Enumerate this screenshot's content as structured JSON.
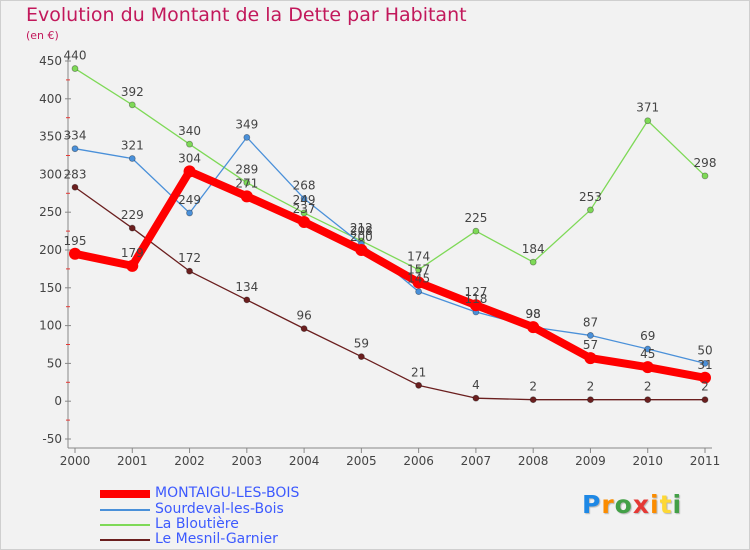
{
  "header": {
    "title": "Evolution du Montant de la Dette par Habitant",
    "unit": "(en €)"
  },
  "logo": {
    "letters": [
      "P",
      "r",
      "o",
      "x",
      "i",
      "t",
      "i"
    ],
    "colors": [
      "#1e88e5",
      "#fb8c00",
      "#43a047",
      "#e53935",
      "#fb8c00",
      "#fdd835",
      "#43a047"
    ]
  },
  "chart_data": {
    "type": "line",
    "title": "Evolution du Montant de la Dette par Habitant",
    "ylabel": "(en €)",
    "xlabel": "",
    "categories": [
      "2000",
      "2001",
      "2002",
      "2003",
      "2004",
      "2005",
      "2006",
      "2007",
      "2008",
      "2009",
      "2010",
      "2011"
    ],
    "ylim": [
      -50,
      450
    ],
    "yticks": [
      -50,
      0,
      50,
      100,
      150,
      200,
      250,
      300,
      350,
      400,
      450
    ],
    "grid": false,
    "legend_position": "bottom-left",
    "series": [
      {
        "name": "MONTAIGU-LES-BOIS",
        "color": "#ff0000",
        "values": [
          195,
          179,
          304,
          271,
          237,
          200,
          157,
          127,
          98,
          57,
          45,
          31
        ]
      },
      {
        "name": "Sourdeval-les-Bois",
        "color": "#4a90d9",
        "values": [
          334,
          321,
          249,
          349,
          268,
          208,
          145,
          118,
          98,
          87,
          69,
          50
        ]
      },
      {
        "name": "La Bloutière",
        "color": "#7ed957",
        "values": [
          440,
          392,
          340,
          289,
          249,
          212,
          174,
          225,
          184,
          253,
          371,
          298
        ]
      },
      {
        "name": "Le Mesnil-Garnier",
        "color": "#6b1f1f",
        "values": [
          283,
          229,
          172,
          134,
          96,
          59,
          21,
          4,
          2,
          2,
          2,
          2
        ]
      }
    ]
  }
}
